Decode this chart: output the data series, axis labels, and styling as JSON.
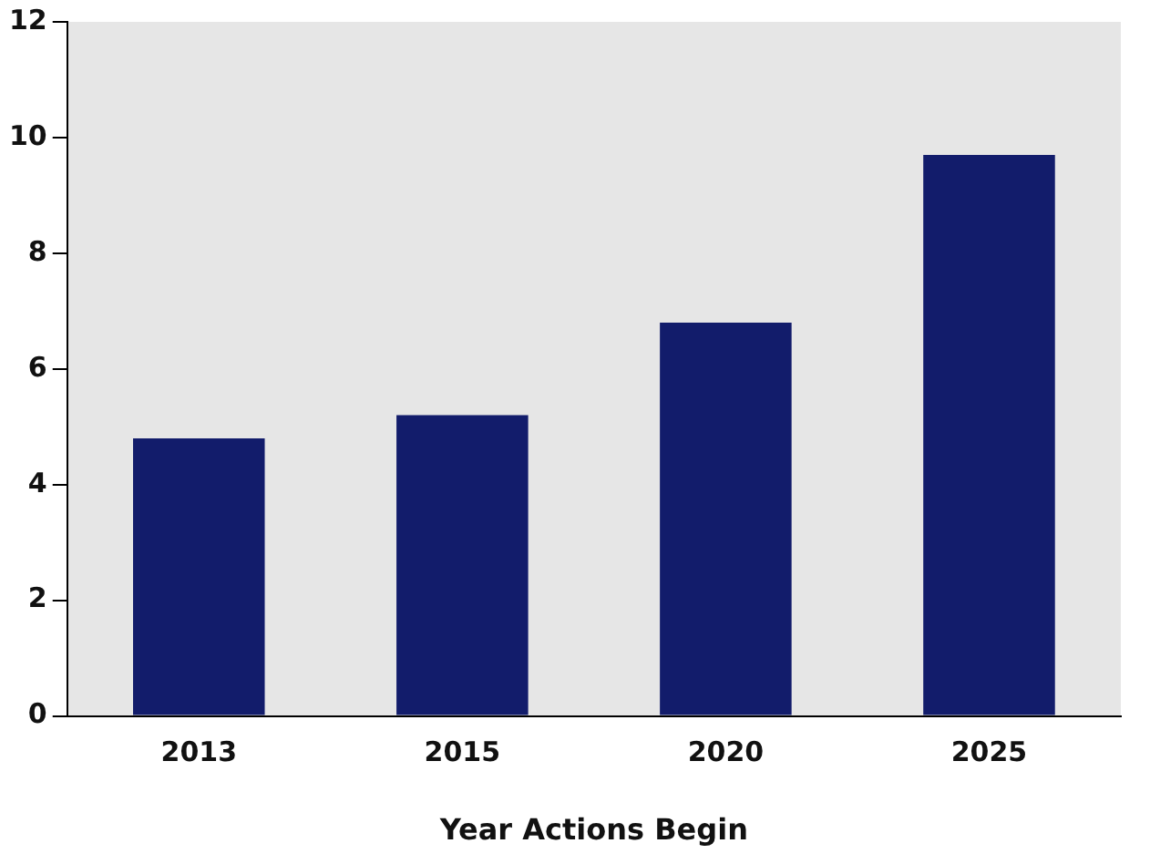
{
  "chart_data": {
    "type": "bar",
    "xlabel": "Year Actions Begin",
    "categories": [
      "2013",
      "2015",
      "2020",
      "2025"
    ],
    "values": [
      4.8,
      5.2,
      6.8,
      9.7
    ],
    "color": "#121c6b",
    "ylim": [
      0,
      12
    ],
    "yticks": [
      0,
      2,
      4,
      6,
      8,
      10,
      12
    ],
    "grid": false,
    "legend": false
  }
}
